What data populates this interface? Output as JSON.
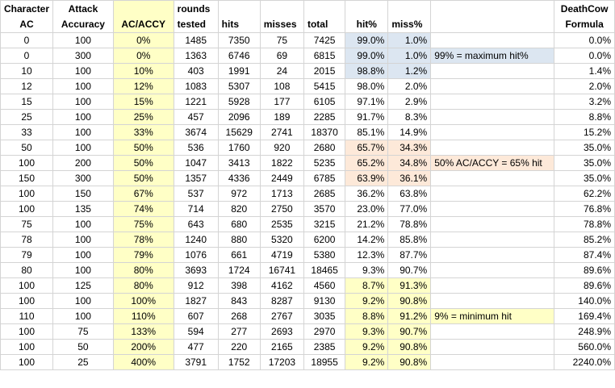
{
  "headers": {
    "character_ac": "Character AC",
    "attack_accuracy": "Attack Accuracy",
    "ac_accy": "AC/ACCY",
    "rounds_tested": "rounds tested",
    "hits": "hits",
    "misses": "misses",
    "total": "total",
    "hit_pct": "hit%",
    "miss_pct": "miss%",
    "note": "",
    "deathcow": "DeathCow Formula"
  },
  "rows": [
    {
      "ac": "0",
      "accuracy": "100",
      "ratio": "0%",
      "rounds": "1485",
      "hits": "7350",
      "misses": "75",
      "total": "7425",
      "hit_pct": "99.0%",
      "miss_pct": "1.0%",
      "note": "",
      "formula": "0.0%",
      "pct_bg": "#dce6f1",
      "note_bg": ""
    },
    {
      "ac": "0",
      "accuracy": "300",
      "ratio": "0%",
      "rounds": "1363",
      "hits": "6746",
      "misses": "69",
      "total": "6815",
      "hit_pct": "99.0%",
      "miss_pct": "1.0%",
      "note": "99% = maximum hit%",
      "formula": "0.0%",
      "pct_bg": "#dce6f1",
      "note_bg": "#dce6f1"
    },
    {
      "ac": "10",
      "accuracy": "100",
      "ratio": "10%",
      "rounds": "403",
      "hits": "1991",
      "misses": "24",
      "total": "2015",
      "hit_pct": "98.8%",
      "miss_pct": "1.2%",
      "note": "",
      "formula": "1.4%",
      "pct_bg": "#dce6f1",
      "note_bg": ""
    },
    {
      "ac": "12",
      "accuracy": "100",
      "ratio": "12%",
      "rounds": "1083",
      "hits": "5307",
      "misses": "108",
      "total": "5415",
      "hit_pct": "98.0%",
      "miss_pct": "2.0%",
      "note": "",
      "formula": "2.0%",
      "pct_bg": "",
      "note_bg": ""
    },
    {
      "ac": "15",
      "accuracy": "100",
      "ratio": "15%",
      "rounds": "1221",
      "hits": "5928",
      "misses": "177",
      "total": "6105",
      "hit_pct": "97.1%",
      "miss_pct": "2.9%",
      "note": "",
      "formula": "3.2%",
      "pct_bg": "",
      "note_bg": ""
    },
    {
      "ac": "25",
      "accuracy": "100",
      "ratio": "25%",
      "rounds": "457",
      "hits": "2096",
      "misses": "189",
      "total": "2285",
      "hit_pct": "91.7%",
      "miss_pct": "8.3%",
      "note": "",
      "formula": "8.8%",
      "pct_bg": "",
      "note_bg": ""
    },
    {
      "ac": "33",
      "accuracy": "100",
      "ratio": "33%",
      "rounds": "3674",
      "hits": "15629",
      "misses": "2741",
      "total": "18370",
      "hit_pct": "85.1%",
      "miss_pct": "14.9%",
      "note": "",
      "formula": "15.2%",
      "pct_bg": "",
      "note_bg": ""
    },
    {
      "ac": "50",
      "accuracy": "100",
      "ratio": "50%",
      "rounds": "536",
      "hits": "1760",
      "misses": "920",
      "total": "2680",
      "hit_pct": "65.7%",
      "miss_pct": "34.3%",
      "note": "",
      "formula": "35.0%",
      "pct_bg": "#fde9d9",
      "note_bg": ""
    },
    {
      "ac": "100",
      "accuracy": "200",
      "ratio": "50%",
      "rounds": "1047",
      "hits": "3413",
      "misses": "1822",
      "total": "5235",
      "hit_pct": "65.2%",
      "miss_pct": "34.8%",
      "note": "50% AC/ACCY = 65% hit",
      "formula": "35.0%",
      "pct_bg": "#fde9d9",
      "note_bg": "#fde9d9"
    },
    {
      "ac": "150",
      "accuracy": "300",
      "ratio": "50%",
      "rounds": "1357",
      "hits": "4336",
      "misses": "2449",
      "total": "6785",
      "hit_pct": "63.9%",
      "miss_pct": "36.1%",
      "note": "",
      "formula": "35.0%",
      "pct_bg": "#fde9d9",
      "note_bg": ""
    },
    {
      "ac": "100",
      "accuracy": "150",
      "ratio": "67%",
      "rounds": "537",
      "hits": "972",
      "misses": "1713",
      "total": "2685",
      "hit_pct": "36.2%",
      "miss_pct": "63.8%",
      "note": "",
      "formula": "62.2%",
      "pct_bg": "",
      "note_bg": ""
    },
    {
      "ac": "100",
      "accuracy": "135",
      "ratio": "74%",
      "rounds": "714",
      "hits": "820",
      "misses": "2750",
      "total": "3570",
      "hit_pct": "23.0%",
      "miss_pct": "77.0%",
      "note": "",
      "formula": "76.8%",
      "pct_bg": "",
      "note_bg": ""
    },
    {
      "ac": "75",
      "accuracy": "100",
      "ratio": "75%",
      "rounds": "643",
      "hits": "680",
      "misses": "2535",
      "total": "3215",
      "hit_pct": "21.2%",
      "miss_pct": "78.8%",
      "note": "",
      "formula": "78.8%",
      "pct_bg": "",
      "note_bg": ""
    },
    {
      "ac": "78",
      "accuracy": "100",
      "ratio": "78%",
      "rounds": "1240",
      "hits": "880",
      "misses": "5320",
      "total": "6200",
      "hit_pct": "14.2%",
      "miss_pct": "85.8%",
      "note": "",
      "formula": "85.2%",
      "pct_bg": "",
      "note_bg": ""
    },
    {
      "ac": "79",
      "accuracy": "100",
      "ratio": "79%",
      "rounds": "1076",
      "hits": "661",
      "misses": "4719",
      "total": "5380",
      "hit_pct": "12.3%",
      "miss_pct": "87.7%",
      "note": "",
      "formula": "87.4%",
      "pct_bg": "",
      "note_bg": ""
    },
    {
      "ac": "80",
      "accuracy": "100",
      "ratio": "80%",
      "rounds": "3693",
      "hits": "1724",
      "misses": "16741",
      "total": "18465",
      "hit_pct": "9.3%",
      "miss_pct": "90.7%",
      "note": "",
      "formula": "89.6%",
      "pct_bg": "",
      "note_bg": ""
    },
    {
      "ac": "100",
      "accuracy": "125",
      "ratio": "80%",
      "rounds": "912",
      "hits": "398",
      "misses": "4162",
      "total": "4560",
      "hit_pct": "8.7%",
      "miss_pct": "91.3%",
      "note": "",
      "formula": "89.6%",
      "pct_bg": "#ffffc6",
      "note_bg": ""
    },
    {
      "ac": "100",
      "accuracy": "100",
      "ratio": "100%",
      "rounds": "1827",
      "hits": "843",
      "misses": "8287",
      "total": "9130",
      "hit_pct": "9.2%",
      "miss_pct": "90.8%",
      "note": "",
      "formula": "140.0%",
      "pct_bg": "#ffffc6",
      "note_bg": ""
    },
    {
      "ac": "110",
      "accuracy": "100",
      "ratio": "110%",
      "rounds": "607",
      "hits": "268",
      "misses": "2767",
      "total": "3035",
      "hit_pct": "8.8%",
      "miss_pct": "91.2%",
      "note": "9% = minimum hit",
      "formula": "169.4%",
      "pct_bg": "#ffffc6",
      "note_bg": "#ffffc6"
    },
    {
      "ac": "100",
      "accuracy": "75",
      "ratio": "133%",
      "rounds": "594",
      "hits": "277",
      "misses": "2693",
      "total": "2970",
      "hit_pct": "9.3%",
      "miss_pct": "90.7%",
      "note": "",
      "formula": "248.9%",
      "pct_bg": "#ffffc6",
      "note_bg": ""
    },
    {
      "ac": "100",
      "accuracy": "50",
      "ratio": "200%",
      "rounds": "477",
      "hits": "220",
      "misses": "2165",
      "total": "2385",
      "hit_pct": "9.2%",
      "miss_pct": "90.8%",
      "note": "",
      "formula": "560.0%",
      "pct_bg": "#ffffc6",
      "note_bg": ""
    },
    {
      "ac": "100",
      "accuracy": "25",
      "ratio": "400%",
      "rounds": "3791",
      "hits": "1752",
      "misses": "17203",
      "total": "18955",
      "hit_pct": "9.2%",
      "miss_pct": "90.8%",
      "note": "",
      "formula": "2240.0%",
      "pct_bg": "#ffffc6",
      "note_bg": ""
    }
  ],
  "colors": {
    "ratio_column": "#ffffc6",
    "blue_band": "#dce6f1",
    "peach_band": "#fde9d9",
    "yellow_band": "#ffffc6",
    "gridline": "#d4d4d4"
  }
}
